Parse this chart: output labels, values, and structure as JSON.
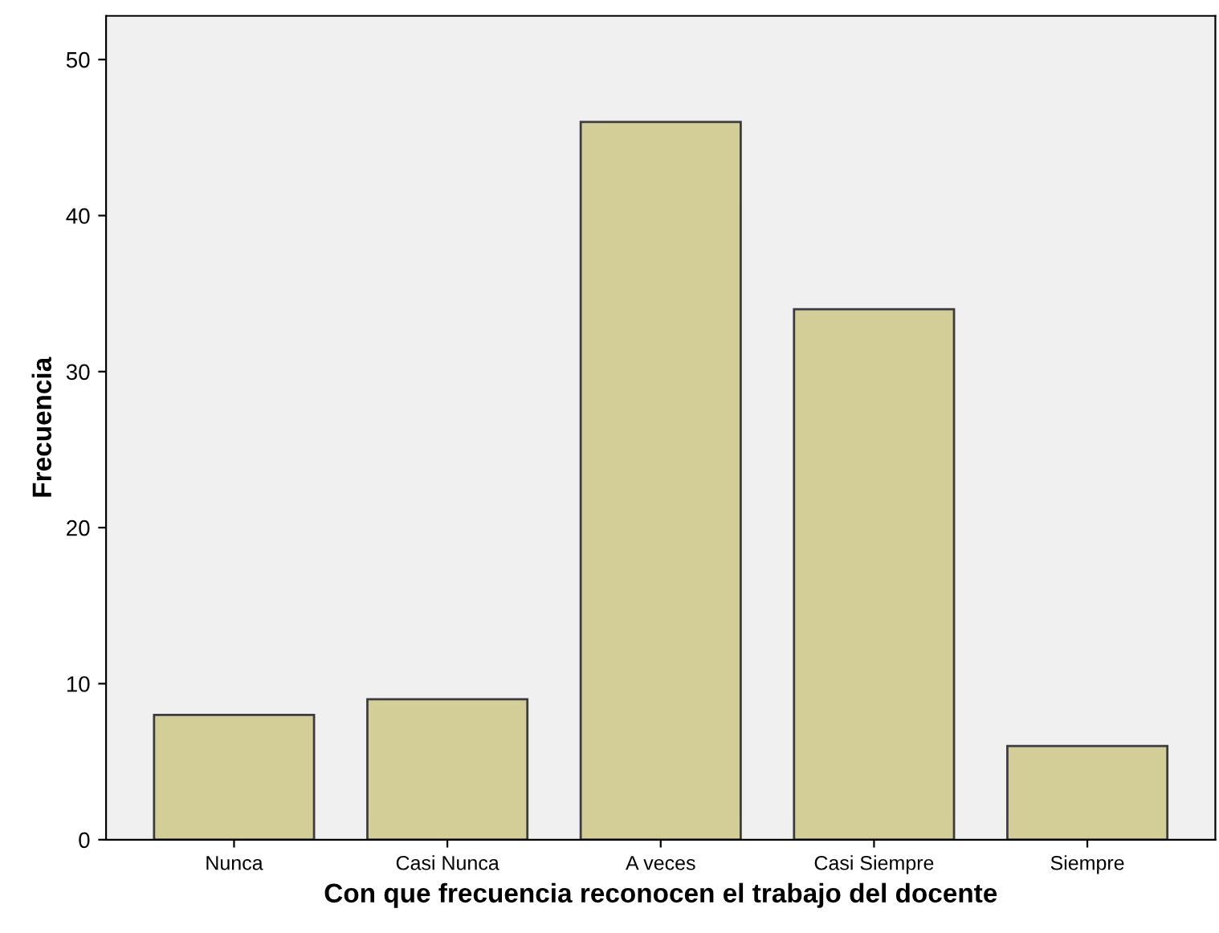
{
  "chart_data": {
    "type": "bar",
    "xlabel": "Con que frecuencia reconocen el trabajo del docente",
    "ylabel": "Frecuencia",
    "categories": [
      "Nunca",
      "Casi Nunca",
      "A veces",
      "Casi Siempre",
      "Siempre"
    ],
    "values": [
      8,
      9,
      46,
      34,
      6
    ],
    "color": "#d3ce97",
    "ylim": [
      0,
      52.8
    ],
    "yticks": [
      0,
      10,
      20,
      30,
      40,
      50
    ],
    "grid": false,
    "legend": false
  }
}
